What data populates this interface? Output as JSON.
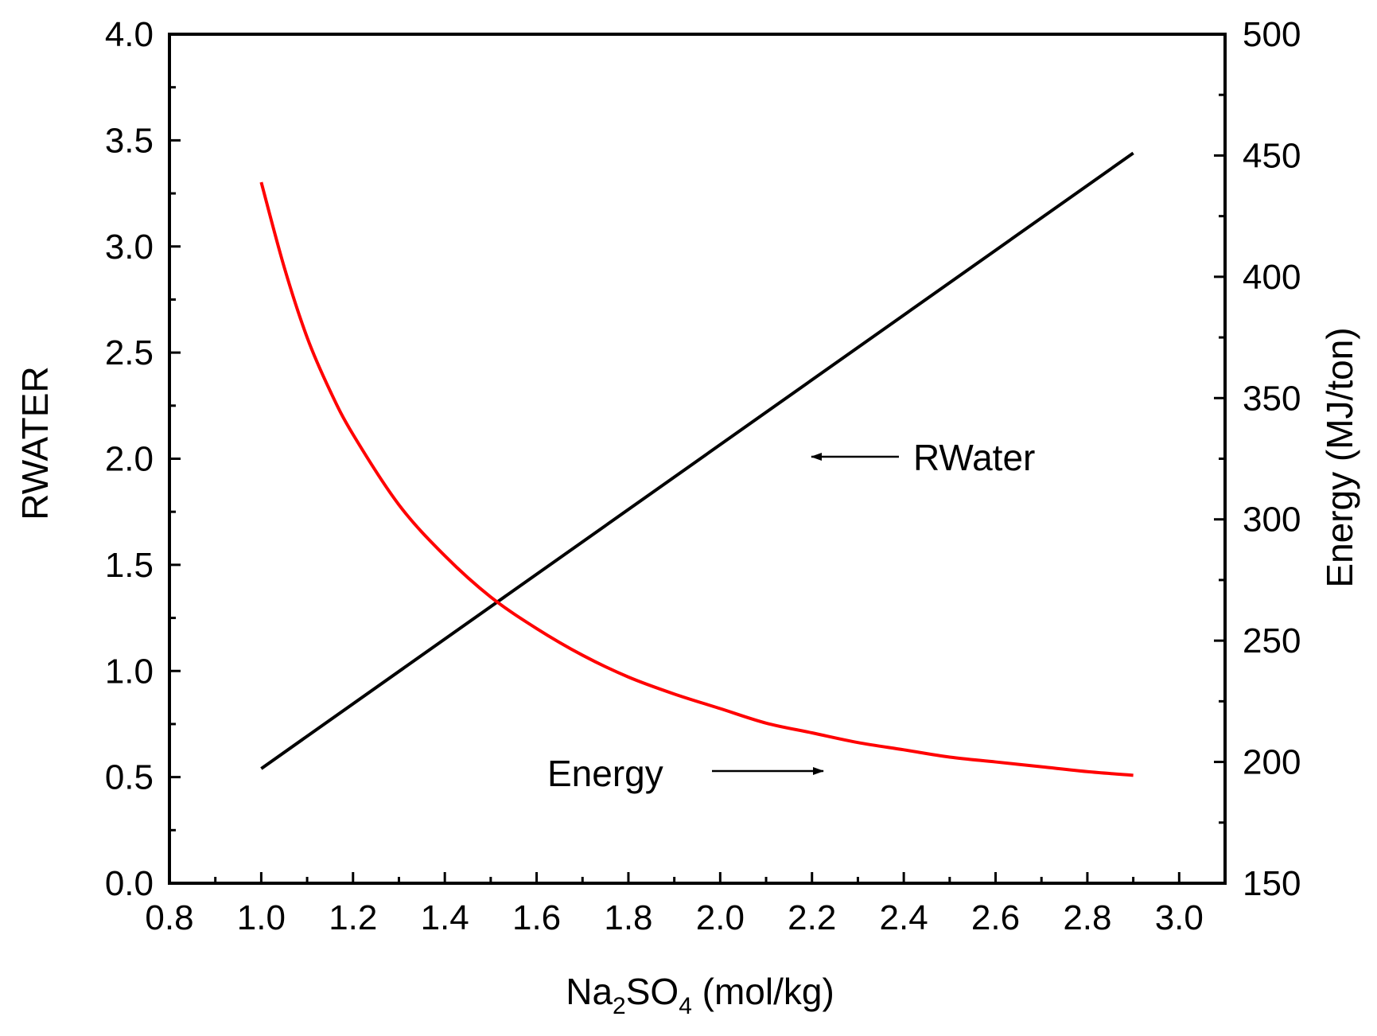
{
  "chart_data": {
    "type": "line",
    "title": "",
    "xlabel": {
      "main": "Na",
      "sub1": "2",
      "mid": "SO",
      "sub2": "4",
      "tail": " (mol/kg)"
    },
    "ylabel_left": "RWATER",
    "ylabel_right": "Energy (MJ/ton)",
    "xlim": [
      0.8,
      3.1
    ],
    "ylim_left": [
      0.0,
      4.0
    ],
    "ylim_right": [
      150,
      500
    ],
    "x_ticks": [
      "0.8",
      "1.0",
      "1.2",
      "1.4",
      "1.6",
      "1.8",
      "2.0",
      "2.2",
      "2.4",
      "2.6",
      "2.8",
      "3.0"
    ],
    "y_left_ticks": [
      "0.0",
      "0.5",
      "1.0",
      "1.5",
      "2.0",
      "2.5",
      "3.0",
      "3.5",
      "4.0"
    ],
    "y_right_ticks": [
      "150",
      "200",
      "250",
      "300",
      "350",
      "400",
      "450",
      "500"
    ],
    "grid": false,
    "series": [
      {
        "name": "RWater",
        "axis": "left",
        "color": "#000000",
        "x": [
          1.0,
          2.9
        ],
        "y": [
          0.54,
          3.44
        ]
      },
      {
        "name": "Energy",
        "axis": "right",
        "color": "#ff0000",
        "x": [
          1.0,
          1.05,
          1.1,
          1.15,
          1.2,
          1.3,
          1.4,
          1.5,
          1.6,
          1.7,
          1.8,
          1.9,
          2.0,
          2.1,
          2.2,
          2.3,
          2.4,
          2.5,
          2.6,
          2.7,
          2.8,
          2.9
        ],
        "y": [
          439,
          404,
          375,
          353,
          335,
          306,
          285,
          268,
          255,
          244,
          235,
          228,
          222,
          216,
          212,
          208,
          205,
          202,
          200,
          198,
          196,
          194.5
        ]
      }
    ],
    "annotations": [
      {
        "text": "RWater",
        "arrow": "left",
        "points_to": "RWater"
      },
      {
        "text": "Energy",
        "arrow": "right",
        "points_to": "Energy"
      }
    ]
  }
}
